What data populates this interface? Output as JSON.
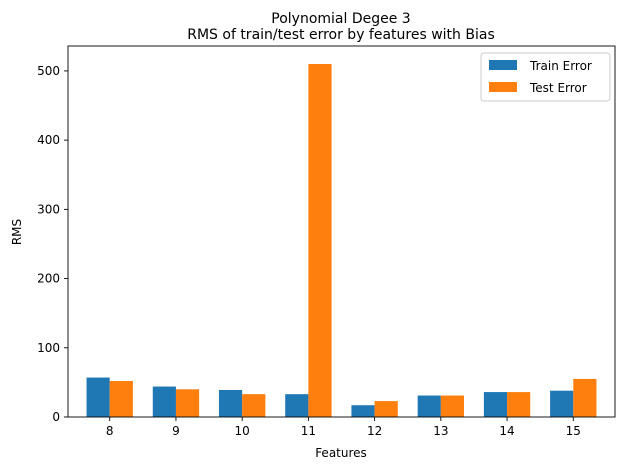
{
  "chart_data": {
    "type": "bar",
    "title": "Polynomial Degee 3",
    "subtitle": "RMS of train/test error by features with Bias",
    "xlabel": "Features",
    "ylabel": "RMS",
    "categories": [
      "8",
      "9",
      "10",
      "11",
      "12",
      "13",
      "14",
      "15"
    ],
    "series": [
      {
        "name": "Train Error",
        "color": "#1f77b4",
        "values": [
          57,
          44,
          39,
          33,
          17,
          31,
          36,
          38
        ]
      },
      {
        "name": "Test Error",
        "color": "#ff7f0e",
        "values": [
          52,
          40,
          33,
          510,
          23,
          31,
          36,
          55
        ]
      }
    ],
    "ylim": [
      0,
      536
    ],
    "yticks": [
      0,
      100,
      200,
      300,
      400,
      500
    ],
    "grid": false,
    "legend_position": "top-right"
  }
}
